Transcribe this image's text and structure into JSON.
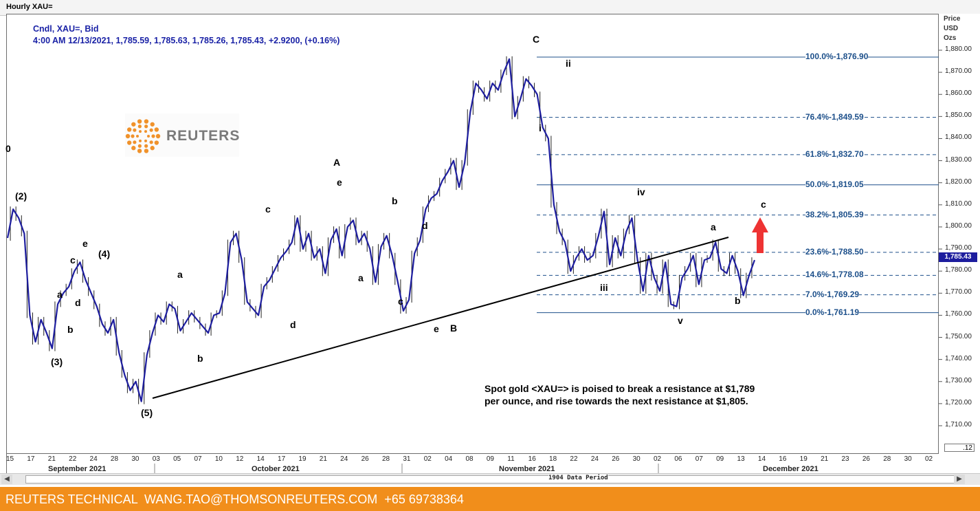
{
  "window": {
    "title": "Hourly XAU="
  },
  "legend": {
    "line1": "Cndl, XAU=, Bid",
    "line2": "4:00 AM 12/13/2021, 1,785.59, 1,785.63, 1,785.26, 1,785.43, +2.9200, (+0.16%)"
  },
  "logo": {
    "text": "REUTERS"
  },
  "units": {
    "u1": "Price",
    "u2": "USD",
    "u3": "Ozs"
  },
  "last_price_tag": "1,785.43",
  "corner_box": ".12",
  "note": {
    "line1": "Spot gold <XAU=> is poised to break a resistance at $1,789",
    "line2": "per ounce, and rise towards the next resistance at $1,805."
  },
  "scrollbar": {
    "period_label": "1904 Data Period",
    "left_arrow": "◀",
    "right_arrow": "▶"
  },
  "footer": {
    "text": "REUTERS TECHNICAL  WANG.TAO@THOMSONREUTERS.COM  +65 69738364"
  },
  "colors": {
    "candle": "#1d1d9e",
    "fib": "#1c4f8a",
    "footer": "#f18e1b",
    "arrow": "#e33"
  },
  "chart_data": {
    "type": "line",
    "title": "Hourly XAU=",
    "ylabel": "Price USD Ozs",
    "ylim": [
      1701,
      1884
    ],
    "yticks": [
      "1,710.00",
      "1,720.00",
      "1,730.00",
      "1,740.00",
      "1,750.00",
      "1,760.00",
      "1,770.00",
      "1,780.00",
      "1,790.00",
      "1,800.00",
      "1,810.00",
      "1,820.00",
      "1,830.00",
      "1,840.00",
      "1,850.00",
      "1,860.00",
      "1,870.00",
      "1,880.00"
    ],
    "xticks": [
      "15",
      "17",
      "21",
      "22",
      "24",
      "28",
      "30",
      "03",
      "05",
      "07",
      "10",
      "12",
      "14",
      "17",
      "19",
      "21",
      "24",
      "26",
      "28",
      "31",
      "02",
      "04",
      "08",
      "09",
      "11",
      "16",
      "18",
      "22",
      "24",
      "26",
      "30",
      "02",
      "06",
      "07",
      "09",
      "13",
      "14",
      "16",
      "19",
      "21",
      "23",
      "26",
      "28",
      "30",
      "02"
    ],
    "months": [
      "September 2021",
      "October 2021",
      "November 2021",
      "December 2021"
    ],
    "series": [
      {
        "values": [
          1795,
          1808,
          1804,
          1797,
          1760,
          1748,
          1758,
          1752,
          1745,
          1765,
          1770,
          1773,
          1780,
          1784,
          1776,
          1770,
          1764,
          1756,
          1752,
          1758,
          1743,
          1733,
          1726,
          1730,
          1721,
          1742,
          1752,
          1760,
          1757,
          1765,
          1763,
          1753,
          1757,
          1761,
          1758,
          1755,
          1752,
          1760,
          1761,
          1770,
          1793,
          1797,
          1785,
          1766,
          1763,
          1760,
          1773,
          1776,
          1781,
          1786,
          1789,
          1793,
          1804,
          1790,
          1797,
          1786,
          1790,
          1779,
          1794,
          1799,
          1787,
          1800,
          1803,
          1793,
          1797,
          1790,
          1775,
          1791,
          1796,
          1787,
          1775,
          1762,
          1767,
          1788,
          1794,
          1808,
          1813,
          1815,
          1821,
          1825,
          1830,
          1818,
          1829,
          1852,
          1865,
          1862,
          1858,
          1865,
          1862,
          1870,
          1876,
          1850,
          1858,
          1867,
          1864,
          1860,
          1845,
          1840,
          1810,
          1798,
          1793,
          1780,
          1786,
          1790,
          1785,
          1787,
          1796,
          1807,
          1783,
          1795,
          1787,
          1798,
          1804,
          1785,
          1771,
          1787,
          1777,
          1771,
          1784,
          1765,
          1764,
          1777,
          1781,
          1787,
          1774,
          1785,
          1786,
          1793,
          1781,
          1779,
          1787,
          1780,
          1769,
          1778,
          1785
        ]
      }
    ],
    "fib_levels": [
      {
        "label": "100.0%-1,876.90",
        "value": 1876.9
      },
      {
        "label": "76.4%-1,849.59",
        "value": 1849.59
      },
      {
        "label": "61.8%-1,832.70",
        "value": 1832.7
      },
      {
        "label": "50.0%-1,819.05",
        "value": 1819.05
      },
      {
        "label": "38.2%-1,805.39",
        "value": 1805.39
      },
      {
        "label": "23.6%-1,788.50",
        "value": 1788.5
      },
      {
        "label": "14.6%-1,778.08",
        "value": 1778.08
      },
      {
        "label": "7.0%-1,769.29",
        "value": 1769.29
      },
      {
        "label": "0.0%-1,761.19",
        "value": 1761.19
      }
    ],
    "wave_labels": [
      "0",
      "(2)",
      "(3)",
      "(4)",
      "(5)",
      "a",
      "b",
      "c",
      "d",
      "e",
      "A",
      "B",
      "C",
      "i",
      "ii",
      "iii",
      "iv",
      "v"
    ]
  }
}
